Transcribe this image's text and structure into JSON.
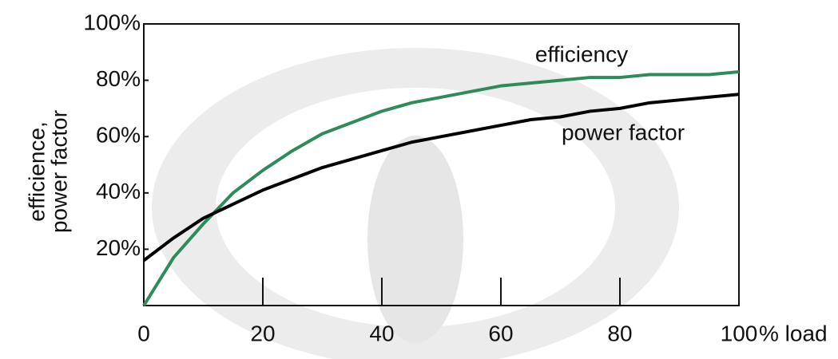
{
  "chart_data": {
    "type": "line",
    "ylabel": [
      "efficience,",
      "power factor"
    ],
    "xlabel": "% load",
    "x": [
      0,
      5,
      10,
      15,
      20,
      25,
      30,
      35,
      40,
      45,
      50,
      55,
      60,
      65,
      70,
      75,
      80,
      85,
      90,
      95,
      100
    ],
    "series": [
      {
        "name": "efficiency",
        "color": "#2f8a5c",
        "values": [
          0,
          17,
          29,
          40,
          48,
          55,
          61,
          65,
          69,
          72,
          74,
          76,
          78,
          79,
          80,
          81,
          81,
          82,
          82,
          82,
          83
        ]
      },
      {
        "name": "power factor",
        "color": "#000000",
        "values": [
          16,
          24,
          31,
          36,
          41,
          45,
          49,
          52,
          55,
          58,
          60,
          62,
          64,
          66,
          67,
          69,
          70,
          72,
          73,
          74,
          75
        ]
      }
    ],
    "xlim": [
      0,
      100
    ],
    "xticks": [
      0,
      20,
      40,
      60,
      80,
      100
    ],
    "ylim": [
      0,
      100
    ],
    "yticks": [
      {
        "value": 20,
        "label": "20%"
      },
      {
        "value": 40,
        "label": "40%"
      },
      {
        "value": 60,
        "label": "60%"
      },
      {
        "value": 80,
        "label": "80%"
      },
      {
        "value": 100,
        "label": "100%"
      }
    ]
  }
}
